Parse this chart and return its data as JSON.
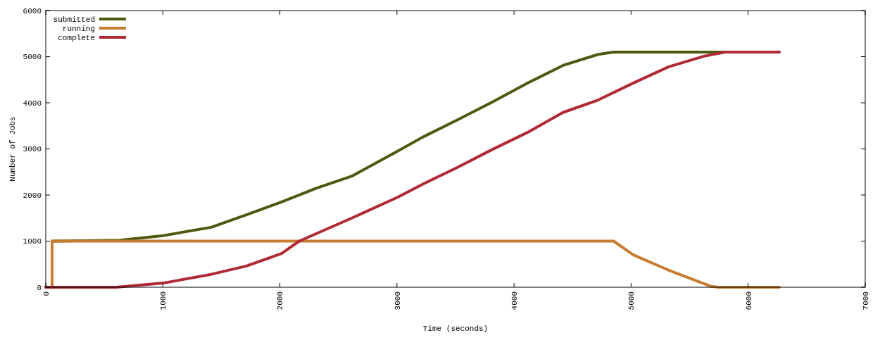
{
  "chart_data": {
    "type": "line",
    "xlabel": "Time (seconds)",
    "ylabel": "Number of Jobs",
    "xlim": [
      0,
      7000
    ],
    "xticks": [
      0,
      1000,
      2000,
      3000,
      4000,
      5000,
      6000,
      7000
    ],
    "ylim": [
      0,
      6000
    ],
    "yticks": [
      0,
      1000,
      2000,
      3000,
      4000,
      5000,
      6000
    ],
    "legend": "top left",
    "marker": "none",
    "line_style": "solid",
    "grid": false,
    "series": [
      {
        "name": "submitted",
        "color": "#4b5a10",
        "x": [
          54,
          631,
          1004,
          1413,
          1714,
          2014,
          2315,
          2615,
          3005,
          3216,
          3517,
          3817,
          4118,
          4418,
          4719,
          4851,
          6266
        ],
        "values": [
          1000,
          1020,
          1120,
          1300,
          1570,
          1850,
          2150,
          2410,
          2950,
          3250,
          3630,
          4020,
          4430,
          4810,
          5050,
          5100,
          5100
        ]
      },
      {
        "name": "running",
        "color": "#c87c30",
        "x": [
          0,
          54,
          54,
          4851,
          5020,
          5321,
          5622,
          5682,
          5742,
          6266
        ],
        "values": [
          0,
          0,
          1000,
          1000,
          700,
          370,
          80,
          20,
          0,
          0
        ]
      },
      {
        "name": "complete",
        "color": "#b02a35",
        "x": [
          0,
          600,
          1004,
          1413,
          1714,
          2014,
          2165,
          2615,
          3005,
          3216,
          3517,
          3817,
          4118,
          4418,
          4719,
          5020,
          5321,
          5622,
          5802,
          6266
        ],
        "values": [
          0,
          0,
          90,
          280,
          460,
          730,
          1000,
          1500,
          1950,
          2230,
          2600,
          2990,
          3360,
          3790,
          4060,
          4430,
          4780,
          5010,
          5100,
          5100
        ]
      }
    ]
  }
}
